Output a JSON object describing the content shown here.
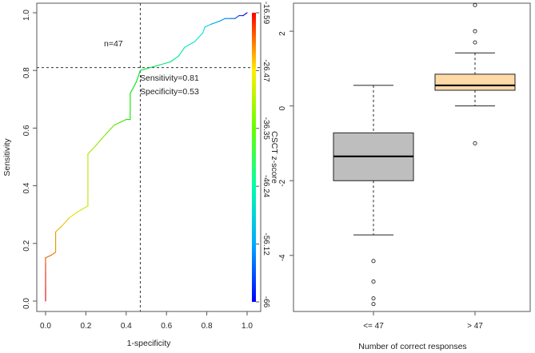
{
  "chart_data": [
    {
      "type": "line",
      "subtype": "roc",
      "xlabel": "1-specificity",
      "ylabel": "Sensitivity",
      "xlim": [
        0,
        1
      ],
      "ylim": [
        0,
        1
      ],
      "xticks": [
        "0.0",
        "0.2",
        "0.4",
        "0.6",
        "0.8",
        "1.0"
      ],
      "yticks": [
        "0.0",
        "0.2",
        "0.4",
        "0.6",
        "0.8",
        "1.0"
      ],
      "annotations": {
        "n_label": "n=47",
        "sensitivity_label": "Sensitivity=0.81",
        "specificity_label": "Specificity=0.53"
      },
      "cutoff": {
        "x": 0.47,
        "y": 0.81
      },
      "curve": {
        "x": [
          0.0,
          0.0,
          0.0,
          0.0,
          0.0,
          0.03,
          0.05,
          0.05,
          0.08,
          0.12,
          0.16,
          0.21,
          0.21,
          0.25,
          0.3,
          0.34,
          0.37,
          0.4,
          0.42,
          0.42,
          0.45,
          0.47,
          0.52,
          0.57,
          0.62,
          0.66,
          0.69,
          0.74,
          0.78,
          0.79,
          0.82,
          0.86,
          0.89,
          0.92,
          0.94,
          0.96,
          0.98,
          0.98,
          1.0
        ],
        "y": [
          0.0,
          0.05,
          0.1,
          0.13,
          0.15,
          0.16,
          0.17,
          0.24,
          0.26,
          0.29,
          0.31,
          0.33,
          0.51,
          0.54,
          0.58,
          0.61,
          0.62,
          0.63,
          0.63,
          0.72,
          0.76,
          0.8,
          0.81,
          0.82,
          0.83,
          0.85,
          0.88,
          0.9,
          0.93,
          0.95,
          0.96,
          0.97,
          0.98,
          0.98,
          0.98,
          0.99,
          0.99,
          0.99,
          1.0
        ]
      },
      "colorbar": {
        "label": "CSCT z-score",
        "range": [
          -66,
          -16.59
        ],
        "ticks": [
          "-16.59",
          "-26.47",
          "-36.35",
          "-46.24",
          "-56.12",
          "-66"
        ]
      }
    },
    {
      "type": "box",
      "xlabel": "Number of correct responses",
      "ylabel": "",
      "ylim": [
        -5.5,
        2.75
      ],
      "yticks": [
        "-4",
        "-2",
        "0",
        "2"
      ],
      "categories": [
        "<= 47",
        "> 47"
      ],
      "boxes": [
        {
          "name": "<= 47",
          "color": "#bebebe",
          "whisker_low": -3.45,
          "q1": -2.0,
          "median": -1.35,
          "q3": -0.72,
          "whisker_high": 0.55,
          "outliers": [
            -4.15,
            -4.7,
            -5.15,
            -5.3
          ]
        },
        {
          "name": "> 47",
          "color": "#ffd9a6",
          "whisker_low": 0.0,
          "q1": 0.42,
          "median": 0.55,
          "q3": 0.85,
          "whisker_high": 1.42,
          "outliers": [
            2.7,
            2.0,
            1.7,
            -1.0
          ]
        }
      ]
    }
  ]
}
